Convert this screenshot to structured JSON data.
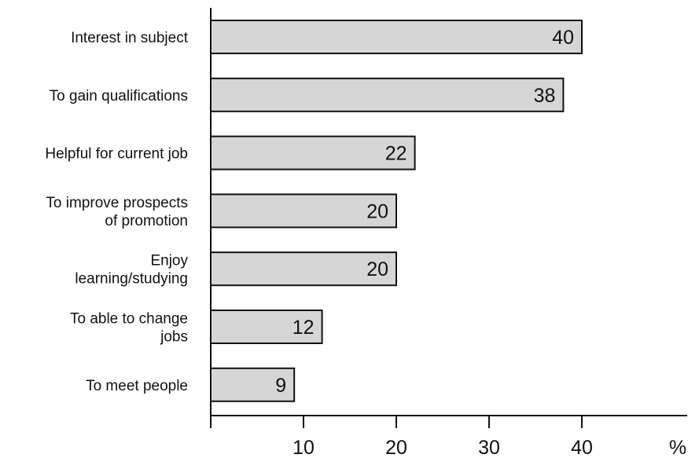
{
  "chart_data": {
    "type": "bar",
    "orientation": "horizontal",
    "categories": [
      [
        "Interest in subject"
      ],
      [
        "To gain qualifications"
      ],
      [
        "Helpful for current job"
      ],
      [
        "To improve prospects",
        "of promotion"
      ],
      [
        "Enjoy",
        "learning/studying"
      ],
      [
        "To able to change",
        "jobs"
      ],
      [
        "To meet people"
      ]
    ],
    "values": [
      40,
      38,
      22,
      20,
      20,
      12,
      9
    ],
    "data_labels": [
      "40",
      "38",
      "22",
      "20",
      "20",
      "12",
      "9"
    ],
    "xlim": [
      0,
      50
    ],
    "x_ticks": [
      10,
      20,
      30,
      40
    ],
    "x_tick_labels": [
      "10",
      "20",
      "30",
      "40"
    ],
    "x_unit": "%",
    "grid": false,
    "bar_fill": "#d6d6d6",
    "bar_stroke": "#111111",
    "axis_color": "#111111"
  }
}
